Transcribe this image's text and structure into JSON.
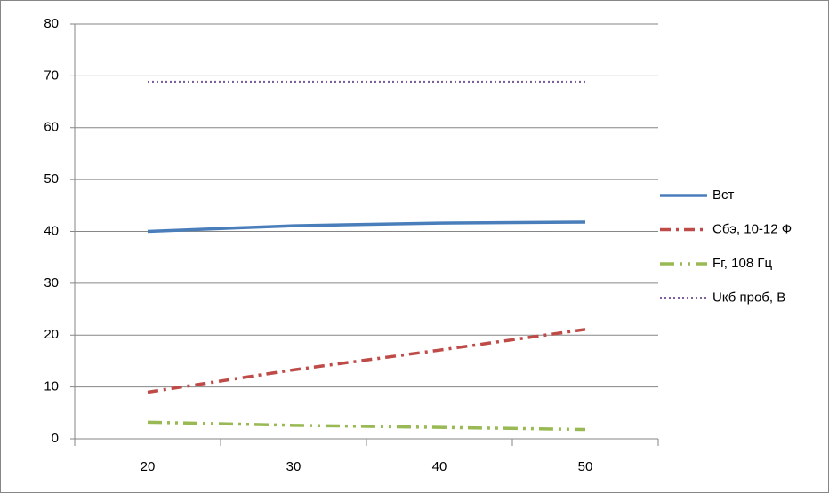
{
  "chart_data": {
    "type": "line",
    "categories": [
      "20",
      "30",
      "40",
      "50"
    ],
    "series": [
      {
        "name": "Вст",
        "color": "#4a7ebb",
        "line_style": "solid",
        "values": [
          40,
          41.1,
          41.6,
          41.8
        ]
      },
      {
        "name": "Сбэ, 10-12 Ф",
        "color": "#be4b48",
        "line_style": "dash-dot",
        "values": [
          9,
          13.3,
          17.1,
          21.1
        ]
      },
      {
        "name": "Fг, 108 Гц",
        "color": "#98b954",
        "line_style": "long-dash-dot-dot",
        "values": [
          3.2,
          2.6,
          2.2,
          1.8
        ]
      },
      {
        "name": "Uкб  проб, В",
        "color": "#7d60a0",
        "line_style": "dotted",
        "values": [
          68.8,
          68.8,
          68.8,
          68.8
        ]
      }
    ],
    "ylim": [
      0,
      80
    ],
    "yticks": [
      0,
      10,
      20,
      30,
      40,
      50,
      60,
      70,
      80
    ],
    "grid": true,
    "legend": "right"
  }
}
